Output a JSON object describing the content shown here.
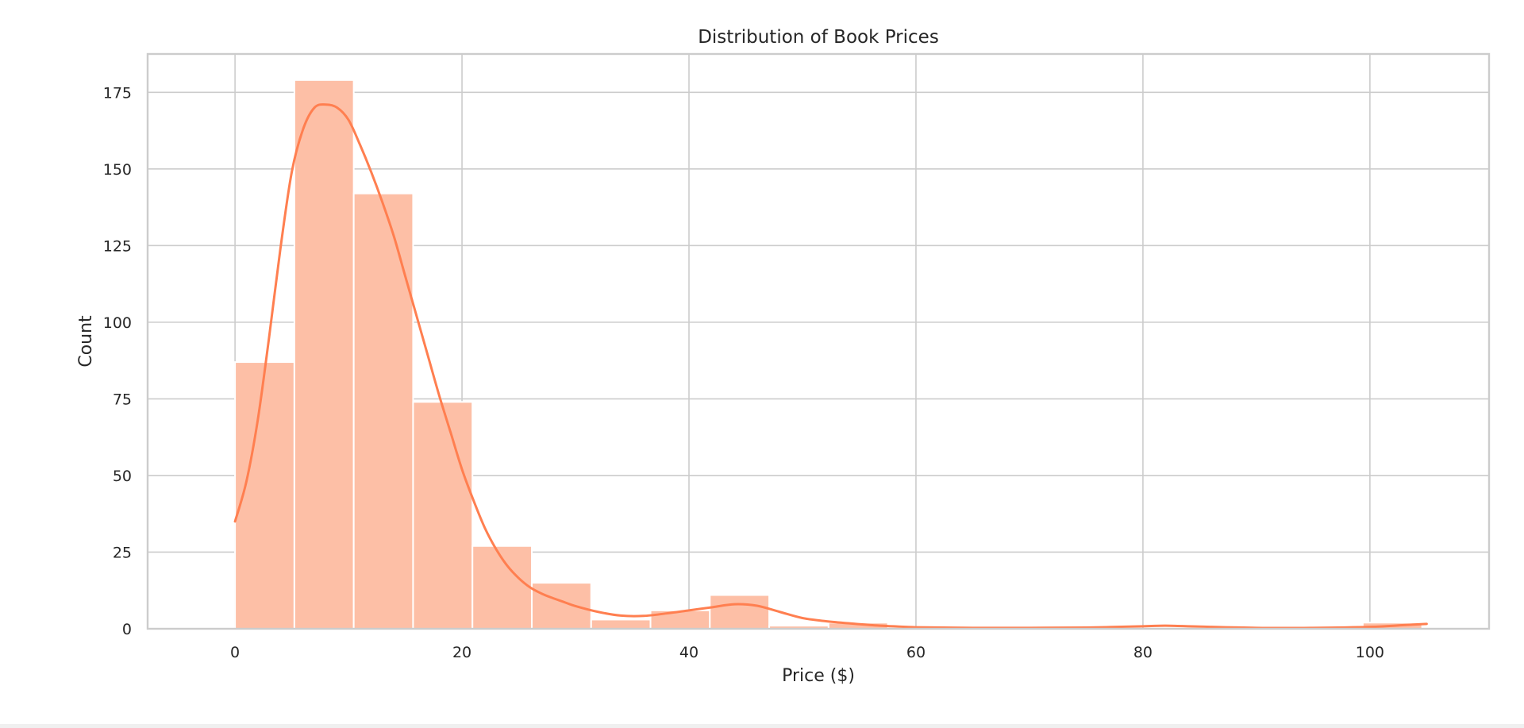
{
  "chart_data": {
    "type": "bar",
    "title": "Distribution of Book Prices",
    "xlabel": "Price ($)",
    "ylabel": "Count",
    "xlim": [
      -7.7,
      110.5
    ],
    "ylim": [
      0,
      187.5
    ],
    "x_ticks": [
      0,
      20,
      40,
      60,
      80,
      100
    ],
    "y_ticks": [
      0,
      25,
      50,
      75,
      100,
      125,
      150,
      175
    ],
    "grid": true,
    "legend": "none",
    "bins": {
      "start": 0,
      "width": 5.23,
      "counts": [
        87,
        179,
        142,
        74,
        27,
        15,
        3,
        6,
        11,
        1,
        2,
        0,
        0,
        0,
        0,
        0,
        0,
        0,
        0,
        2
      ]
    },
    "kde": {
      "x": [
        0,
        1,
        2,
        3,
        4,
        5,
        6,
        7,
        8,
        9,
        10,
        11,
        12,
        13,
        14,
        15,
        16,
        17,
        18,
        19,
        20,
        21,
        22,
        23,
        24,
        25,
        26,
        27,
        28,
        29,
        30,
        32,
        34,
        36,
        38,
        40,
        42,
        44,
        46,
        48,
        50,
        52,
        54,
        56,
        58,
        60,
        65,
        70,
        75,
        80,
        82,
        85,
        90,
        95,
        100,
        103,
        105
      ],
      "y": [
        35,
        48,
        68,
        95,
        124,
        149,
        163,
        170,
        171,
        170,
        166,
        158,
        149,
        139,
        128,
        115,
        102,
        89,
        76,
        64,
        52,
        42,
        33,
        26,
        20.5,
        16.5,
        13.5,
        11.5,
        10,
        8.7,
        7.4,
        5.5,
        4.3,
        4.2,
        5,
        6,
        7,
        8,
        7.5,
        5.5,
        3.5,
        2.5,
        1.8,
        1.2,
        0.8,
        0.5,
        0.3,
        0.3,
        0.4,
        0.8,
        1,
        0.7,
        0.3,
        0.3,
        0.6,
        1.2,
        1.6
      ]
    },
    "colors": {
      "bar": "#fdbfa6",
      "kde": "#ff7f50",
      "grid": "#cccccc",
      "text": "#262626"
    }
  }
}
